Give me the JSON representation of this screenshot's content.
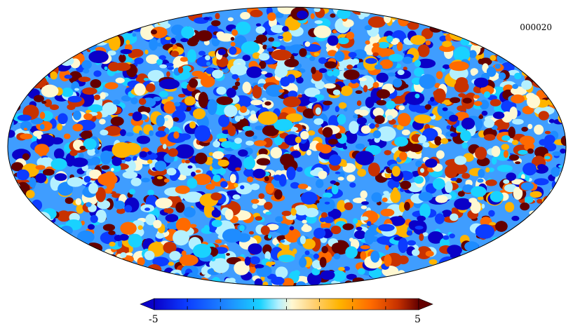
{
  "map": {
    "id_label": "000020",
    "projection": "mollweide"
  },
  "colorbar": {
    "min_label": "-5",
    "max_label": "5",
    "min": -5,
    "max": 5,
    "colors": [
      "#0a00c8",
      "#0c3cff",
      "#1e8cff",
      "#19d2ff",
      "#b4f0ff",
      "#fff8d2",
      "#ffb400",
      "#ff6a00",
      "#c83200",
      "#640000"
    ]
  }
}
